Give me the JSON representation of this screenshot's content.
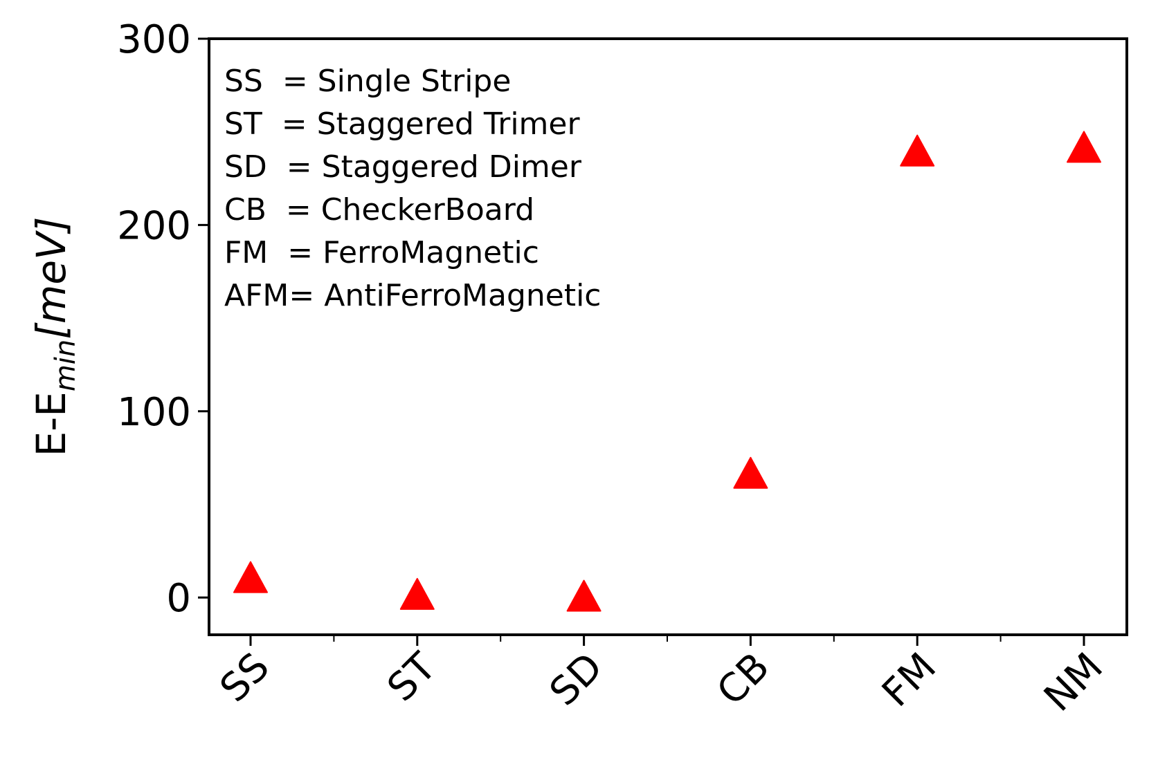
{
  "chart_data": {
    "type": "scatter",
    "title": "",
    "ylabel": {
      "main": "E-E",
      "sub": "min",
      "unit": "[meV]"
    },
    "xlabel": "",
    "categories": [
      "SS",
      "ST",
      "SD",
      "CB",
      "FM",
      "NM"
    ],
    "series": [
      {
        "values": [
          9,
          0,
          -1,
          65,
          238,
          240
        ],
        "color": "#ff0000",
        "marker": "triangle-up"
      }
    ],
    "ylim": [
      -20,
      300
    ],
    "yticks": [
      0,
      100,
      200,
      300
    ],
    "grid": false,
    "annotations": [
      "SS  = Single Stripe",
      "ST  = Staggered Trimer",
      "SD  = Staggered Dimer",
      "CB  = CheckerBoard",
      "FM  = FerroMagnetic",
      "AFM= AntiFerroMagnetic"
    ]
  }
}
